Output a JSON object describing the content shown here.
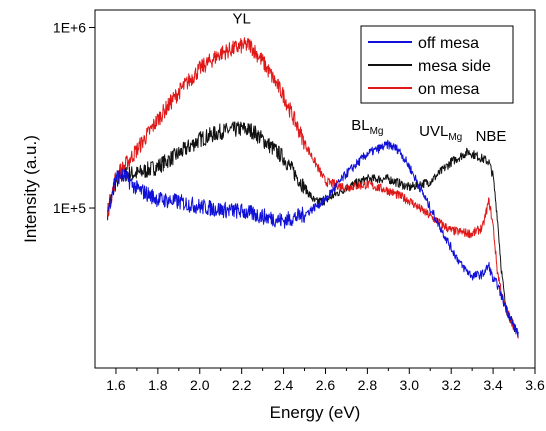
{
  "chart_data": {
    "type": "line",
    "title": "",
    "xlabel": "Energy (eV)",
    "ylabel": "Intensity (a.u.)",
    "xlim": [
      1.5,
      3.6
    ],
    "ylim": [
      13000,
      1250000
    ],
    "yscale": "log",
    "x_ticks": [
      "1.6",
      "1.8",
      "2.0",
      "2.2",
      "2.4",
      "2.6",
      "2.8",
      "3.0",
      "3.2",
      "3.4",
      "3.6"
    ],
    "y_ticks": [
      {
        "label": "1E+5",
        "value": 100000
      },
      {
        "label": "1E+6",
        "value": 1000000
      }
    ],
    "grid": false,
    "legend_position": "top-right",
    "series": [
      {
        "name": "off mesa",
        "color": "#1010d8",
        "points": [
          [
            1.56,
            95000
          ],
          [
            1.6,
            150000
          ],
          [
            1.64,
            150000
          ],
          [
            1.7,
            128000
          ],
          [
            1.8,
            112000
          ],
          [
            1.9,
            108000
          ],
          [
            2.0,
            102000
          ],
          [
            2.1,
            98000
          ],
          [
            2.2,
            96000
          ],
          [
            2.3,
            90000
          ],
          [
            2.4,
            85000
          ],
          [
            2.5,
            92000
          ],
          [
            2.6,
            112000
          ],
          [
            2.7,
            155000
          ],
          [
            2.8,
            200000
          ],
          [
            2.9,
            225000
          ],
          [
            2.95,
            210000
          ],
          [
            3.0,
            170000
          ],
          [
            3.1,
            100000
          ],
          [
            3.2,
            60000
          ],
          [
            3.25,
            48000
          ],
          [
            3.3,
            42000
          ],
          [
            3.35,
            43000
          ],
          [
            3.38,
            48000
          ],
          [
            3.4,
            40000
          ],
          [
            3.42,
            38000
          ],
          [
            3.45,
            30000
          ],
          [
            3.5,
            22000
          ],
          [
            3.52,
            20000
          ]
        ]
      },
      {
        "name": "mesa side",
        "color": "#111111",
        "points": [
          [
            1.56,
            95000
          ],
          [
            1.6,
            140000
          ],
          [
            1.64,
            155000
          ],
          [
            1.7,
            155000
          ],
          [
            1.8,
            170000
          ],
          [
            1.9,
            200000
          ],
          [
            2.0,
            240000
          ],
          [
            2.1,
            265000
          ],
          [
            2.2,
            275000
          ],
          [
            2.25,
            268000
          ],
          [
            2.3,
            240000
          ],
          [
            2.4,
            190000
          ],
          [
            2.5,
            130000
          ],
          [
            2.55,
            108000
          ],
          [
            2.6,
            110000
          ],
          [
            2.7,
            130000
          ],
          [
            2.8,
            145000
          ],
          [
            2.9,
            145000
          ],
          [
            3.0,
            130000
          ],
          [
            3.1,
            140000
          ],
          [
            3.2,
            180000
          ],
          [
            3.28,
            205000
          ],
          [
            3.32,
            195000
          ],
          [
            3.36,
            185000
          ],
          [
            3.38,
            180000
          ],
          [
            3.4,
            150000
          ],
          [
            3.42,
            90000
          ],
          [
            3.44,
            45000
          ],
          [
            3.46,
            28000
          ],
          [
            3.5,
            22000
          ],
          [
            3.52,
            20000
          ]
        ]
      },
      {
        "name": "on mesa",
        "color": "#e01818",
        "points": [
          [
            1.56,
            95000
          ],
          [
            1.6,
            150000
          ],
          [
            1.64,
            170000
          ],
          [
            1.7,
            210000
          ],
          [
            1.8,
            310000
          ],
          [
            1.9,
            440000
          ],
          [
            2.0,
            590000
          ],
          [
            2.1,
            720000
          ],
          [
            2.2,
            790000
          ],
          [
            2.24,
            800000
          ],
          [
            2.3,
            650000
          ],
          [
            2.4,
            420000
          ],
          [
            2.5,
            230000
          ],
          [
            2.6,
            140000
          ],
          [
            2.7,
            130000
          ],
          [
            2.8,
            135000
          ],
          [
            2.9,
            125000
          ],
          [
            3.0,
            110000
          ],
          [
            3.1,
            90000
          ],
          [
            3.2,
            75000
          ],
          [
            3.3,
            72000
          ],
          [
            3.35,
            78000
          ],
          [
            3.38,
            110000
          ],
          [
            3.4,
            80000
          ],
          [
            3.42,
            45000
          ],
          [
            3.45,
            30000
          ],
          [
            3.5,
            22000
          ],
          [
            3.52,
            20000
          ]
        ]
      }
    ],
    "annotations": [
      {
        "id": "yl",
        "text": "YL",
        "sub": "",
        "x": 2.2,
        "y": 1050000
      },
      {
        "id": "bl",
        "text": "BL",
        "sub": "Mg",
        "x": 2.8,
        "y": 270000
      },
      {
        "id": "uvl",
        "text": "UVL",
        "sub": "Mg",
        "x": 3.15,
        "y": 250000
      },
      {
        "id": "nbe",
        "text": "NBE",
        "sub": "",
        "x": 3.39,
        "y": 235000
      }
    ]
  }
}
